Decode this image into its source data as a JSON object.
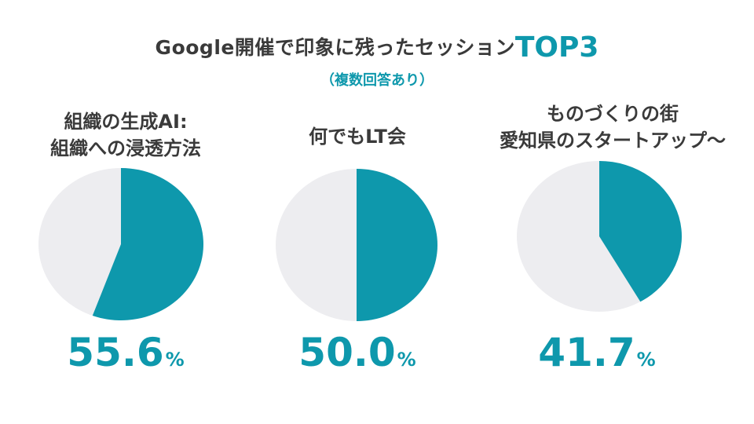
{
  "header": {
    "title_prefix": "Google開催で印象に残ったセッション",
    "title_accent": "TOP3",
    "subtitle": "（複数回答あり）"
  },
  "colors": {
    "accent": "#0e98ac",
    "remainder": "#ededf0",
    "text": "#3a3a3a"
  },
  "chart_data": [
    {
      "type": "pie",
      "title_lines": [
        "組織の生成AI:",
        "組織への浸透方法"
      ],
      "value": 55.6,
      "value_label": "55.6",
      "unit": "%"
    },
    {
      "type": "pie",
      "title_lines": [
        "何でもLT会"
      ],
      "value": 50.0,
      "value_label": "50.0",
      "unit": "%"
    },
    {
      "type": "pie",
      "title_lines": [
        "ものづくりの街",
        "愛知県のスタートアップ〜"
      ],
      "value": 41.7,
      "value_label": "41.7",
      "unit": "%"
    }
  ]
}
